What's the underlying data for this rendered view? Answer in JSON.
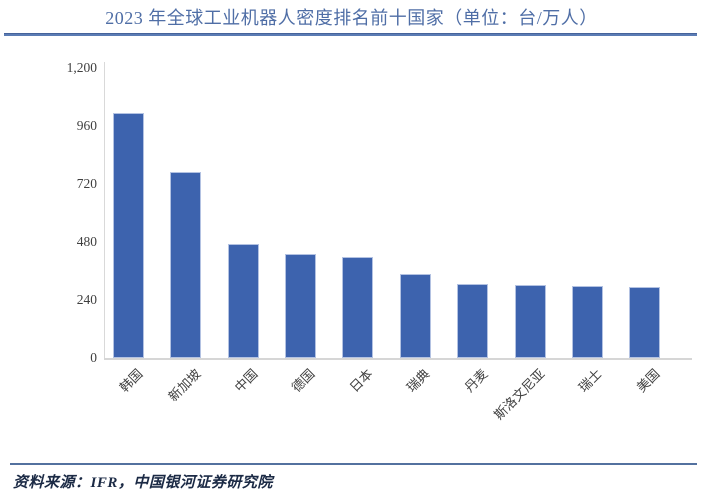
{
  "title": "2023 年全球工业机器人密度排名前十国家（单位：台/万人）",
  "source_note": "资料来源：IFR，中国银河证券研究院",
  "colors": {
    "bar_fill": "#3d63ae",
    "bar_border": "#b3c2e2",
    "title_text": "#4f6ea6",
    "rule_blue": "#5b7cb4",
    "axis_gray": "#d9d9d9",
    "tick_text": "#3f3f3f",
    "source_text": "#1b2a45"
  },
  "chart_data": {
    "type": "bar",
    "title": "2023 年全球工业机器人密度排名前十国家",
    "unit": "台/万人",
    "categories": [
      "韩国",
      "新加坡",
      "中国",
      "德国",
      "日本",
      "瑞典",
      "丹麦",
      "斯洛文尼亚",
      "瑞士",
      "美国"
    ],
    "values": [
      1012,
      770,
      470,
      429,
      419,
      347,
      306,
      302,
      296,
      295
    ],
    "xlabel": "",
    "ylabel": "",
    "ylim": [
      0,
      1200
    ],
    "yticks": [
      0,
      240,
      480,
      720,
      960,
      1200
    ],
    "ytick_labels": [
      "0",
      "240",
      "480",
      "720",
      "960",
      "1,200"
    ],
    "grid": false,
    "legend_position": "none",
    "bar_color": "#3d63ae"
  }
}
